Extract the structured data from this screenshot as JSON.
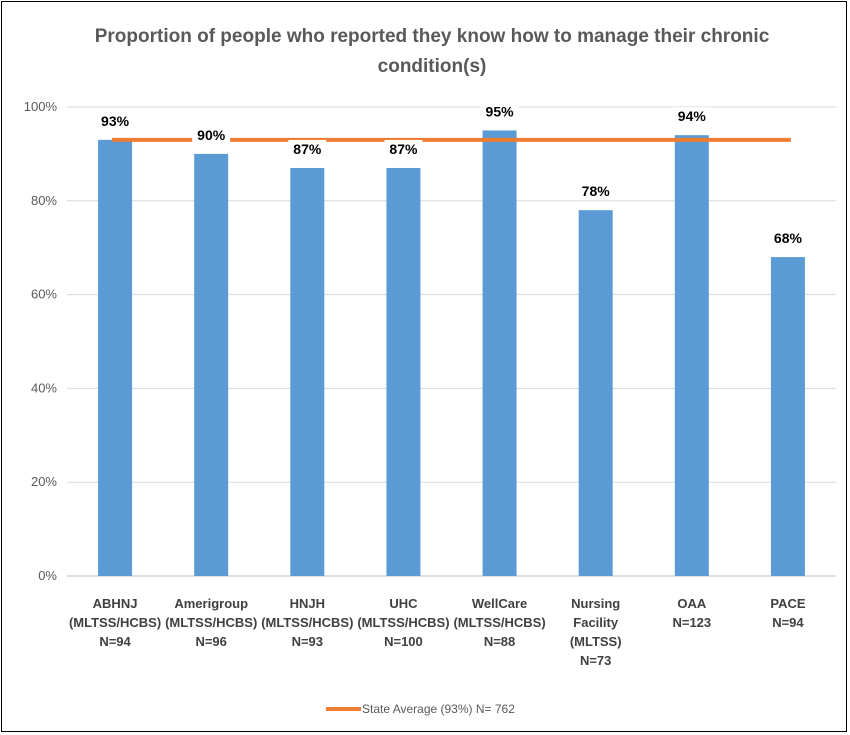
{
  "chart_data": {
    "type": "bar",
    "title": "Proportion of people who reported they know how to manage their chronic condition(s)",
    "categories": [
      [
        "ABHNJ",
        "(MLTSS/HCBS)",
        "N=94"
      ],
      [
        "Amerigroup",
        "(MLTSS/HCBS)",
        "N=96"
      ],
      [
        "HNJH",
        "(MLTSS/HCBS)",
        "N=93"
      ],
      [
        "UHC",
        "(MLTSS/HCBS)",
        "N=100"
      ],
      [
        "WellCare",
        "(MLTSS/HCBS)",
        "N=88"
      ],
      [
        "Nursing",
        "Facility",
        "(MLTSS)",
        "N=73"
      ],
      [
        "OAA",
        "N=123"
      ],
      [
        "PACE",
        "N=94"
      ]
    ],
    "values": [
      93,
      90,
      87,
      87,
      95,
      78,
      94,
      68
    ],
    "data_labels": [
      "93%",
      "90%",
      "87%",
      "87%",
      "95%",
      "78%",
      "94%",
      "68%"
    ],
    "ylim": [
      0,
      100
    ],
    "yticks": [
      "0%",
      "20%",
      "40%",
      "60%",
      "80%",
      "100%"
    ],
    "grid": true,
    "bar_color": "#5B9BD5",
    "reference_line": {
      "name": "State Average (93%) N= 762",
      "value": 93,
      "color": "#ED7D31"
    },
    "legend_position": "bottom"
  }
}
